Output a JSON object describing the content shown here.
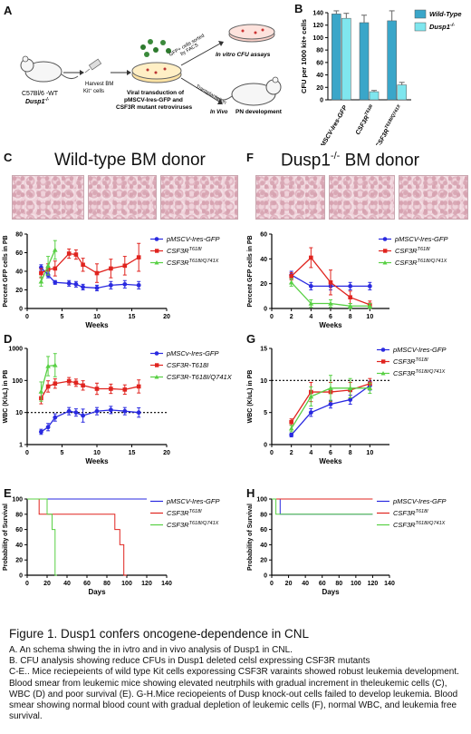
{
  "panels": {
    "A": "A",
    "B": "B",
    "C": "C",
    "D": "D",
    "E": "E",
    "F": "F",
    "G": "G",
    "H": "H"
  },
  "schema": {
    "mouse_label_1": "C57Bl/6 -WT",
    "mouse_label_2": "Dusp1",
    "mouse_label_2_sup": "-/-",
    "harvest_1": "Harvest BM",
    "harvest_2": "Kit",
    "harvest_2_sup": "+",
    "harvest_3": " cells",
    "sorted_1": "GFP+ cells sorted",
    "sorted_2": "by FACS",
    "invitro": "In vitro CFU assays",
    "transplant": "Transplantation",
    "viral_1": "Viral transduction of",
    "viral_2": "pMSCV-Ires-GFP and",
    "viral_3": "CSF3R mutant retroviruses",
    "invivo": "In Vivo",
    "pn": "PN development"
  },
  "headers": {
    "C": "Wild-type BM donor",
    "F": "Dusp1",
    "F_sup": "-/-",
    "F_rest": " BM donor"
  },
  "colors": {
    "wt_bar": "#3aa6c9",
    "ko_bar": "#7fe6ee",
    "blue": "#2a2ae0",
    "red": "#e0241f",
    "green": "#58d044"
  },
  "chart_data": [
    {
      "panel": "B",
      "type": "bar",
      "categories": [
        "pMSCV-Ires-GFP",
        "CSF3R",
        "CSF3R"
      ],
      "category_sups": [
        "",
        "T618I",
        "T618I/Q741X"
      ],
      "series": [
        {
          "name": "Wild-Type",
          "values": [
            138,
            124,
            127
          ],
          "errors": [
            5,
            12,
            16
          ]
        },
        {
          "name": "Dusp1",
          "name_sup": "-/-",
          "values": [
            131,
            13,
            24
          ],
          "errors": [
            8,
            2,
            4
          ]
        }
      ],
      "ylabel": "CFU per 1000 kit+ cells",
      "ylim": [
        0,
        140
      ],
      "yticks": [
        "0",
        "20",
        "40",
        "60",
        "80",
        "100",
        "120",
        "140"
      ]
    },
    {
      "panel": "C",
      "type": "line",
      "legend": [
        {
          "text": "pMSCV-Ires-GFP",
          "sup": ""
        },
        {
          "text": "CSF3R",
          "sup": "T618I"
        },
        {
          "text": "CSF3R",
          "sup": "T618I/Q741X"
        }
      ],
      "series": [
        {
          "x": [
            2,
            3,
            4,
            6,
            7,
            8,
            10,
            12,
            14,
            16
          ],
          "y": [
            44,
            36,
            28,
            27,
            26,
            23,
            22,
            25,
            26,
            25
          ],
          "err": [
            3,
            3,
            2,
            3,
            3,
            3,
            3,
            4,
            4,
            4
          ]
        },
        {
          "x": [
            2,
            3,
            4,
            6,
            7,
            8,
            10,
            12,
            14,
            16
          ],
          "y": [
            38,
            42,
            43,
            59,
            58,
            47,
            38,
            43,
            46,
            55
          ],
          "err": [
            5,
            6,
            8,
            5,
            5,
            7,
            10,
            10,
            10,
            15
          ]
        },
        {
          "x": [
            2,
            3,
            4
          ],
          "y": [
            29,
            46,
            63
          ],
          "err": [
            5,
            10,
            10
          ]
        }
      ],
      "xlabel": "Weeks",
      "ylabel": "Percent GFP cells in PB",
      "xlim": [
        0,
        20
      ],
      "ylim": [
        0,
        80
      ],
      "xticks": [
        "0",
        "5",
        "10",
        "15",
        "20"
      ],
      "yticks": [
        "0",
        "20",
        "40",
        "60",
        "80"
      ]
    },
    {
      "panel": "D",
      "type": "line",
      "legend": [
        {
          "text": "pMSCv-Ires-GFP",
          "sup": ""
        },
        {
          "text": "CSF3R-T618I",
          "sup": ""
        },
        {
          "text": "CSF3R-T618I/Q741X",
          "sup": ""
        }
      ],
      "series": [
        {
          "x": [
            2,
            3,
            4,
            6,
            7,
            8,
            10,
            12,
            14,
            16
          ],
          "y": [
            2.5,
            3.5,
            7,
            11,
            10,
            8,
            11,
            12,
            11,
            10
          ],
          "err_f": [
            1.2,
            1.3,
            1.3,
            1.3,
            1.3,
            1.6,
            1.3,
            1.3,
            1.3,
            1.4
          ]
        },
        {
          "x": [
            2,
            3,
            4,
            6,
            7,
            8,
            10,
            12,
            14,
            16
          ],
          "y": [
            28,
            65,
            80,
            95,
            85,
            70,
            55,
            55,
            52,
            65
          ],
          "err_f": [
            1.5,
            1.5,
            1.4,
            1.3,
            1.3,
            1.4,
            1.5,
            1.4,
            1.4,
            1.6
          ]
        },
        {
          "x": [
            2,
            3,
            4
          ],
          "y": [
            45,
            280,
            300
          ],
          "err_f": [
            2,
            2,
            2.3
          ]
        }
      ],
      "refline": 10,
      "xlabel": "Weeks",
      "ylabel": "WBC (K/uL) in PB",
      "xlim": [
        0,
        20
      ],
      "xticks": [
        "0",
        "5",
        "10",
        "15",
        "20"
      ],
      "yticks": [
        "1",
        "10",
        "100",
        "1000"
      ]
    },
    {
      "panel": "E",
      "type": "line",
      "legend": [
        {
          "text": "pMSCV-Ires-GFP",
          "sup": ""
        },
        {
          "text": "CSF3R",
          "sup": "T618I"
        },
        {
          "text": "CSF3R",
          "sup": "T618I/Q741X"
        }
      ],
      "series": [
        {
          "steps": [
            [
              0,
              100
            ],
            [
              120,
              100
            ]
          ]
        },
        {
          "steps": [
            [
              0,
              100
            ],
            [
              12,
              100
            ],
            [
              12,
              80
            ],
            [
              88,
              80
            ],
            [
              88,
              60
            ],
            [
              93,
              60
            ],
            [
              93,
              40
            ],
            [
              97,
              40
            ],
            [
              97,
              0
            ],
            [
              100,
              0
            ]
          ]
        },
        {
          "steps": [
            [
              0,
              100
            ],
            [
              20,
              100
            ],
            [
              20,
              80
            ],
            [
              25,
              80
            ],
            [
              25,
              60
            ],
            [
              28,
              60
            ],
            [
              28,
              0
            ],
            [
              30,
              0
            ]
          ]
        }
      ],
      "xlabel": "Days",
      "ylabel": "Probability of Survival",
      "xlim": [
        0,
        140
      ],
      "ylim": [
        0,
        100
      ],
      "xticks": [
        "0",
        "20",
        "40",
        "60",
        "80",
        "100",
        "120",
        "140"
      ],
      "yticks": [
        "0",
        "20",
        "40",
        "60",
        "80",
        "100"
      ]
    },
    {
      "panel": "F",
      "type": "line",
      "legend": [
        {
          "text": "pMSCV-Ires-GFP",
          "sup": ""
        },
        {
          "text": "CSF3R",
          "sup": "T618I"
        },
        {
          "text": "CSF3R",
          "sup": "T618I/Q741X"
        }
      ],
      "series": [
        {
          "x": [
            2,
            4,
            6,
            8,
            10
          ],
          "y": [
            27,
            18,
            18,
            18,
            18
          ],
          "err": [
            3,
            3,
            3,
            3,
            3
          ]
        },
        {
          "x": [
            2,
            4,
            6,
            8,
            10
          ],
          "y": [
            26,
            41,
            21,
            9,
            3
          ],
          "err": [
            3,
            8,
            10,
            5,
            3
          ]
        },
        {
          "x": [
            2,
            4,
            6,
            8,
            10
          ],
          "y": [
            21,
            4,
            4,
            2,
            2
          ],
          "err": [
            3,
            3,
            3,
            2,
            2
          ]
        }
      ],
      "xlabel": "Weeks",
      "ylabel": "Percent GFP cells in PB",
      "xlim": [
        0,
        12
      ],
      "ylim": [
        0,
        60
      ],
      "xticks": [
        "0",
        "2",
        "4",
        "6",
        "8",
        "10"
      ],
      "yticks": [
        "0",
        "20",
        "40",
        "60"
      ]
    },
    {
      "panel": "G",
      "type": "line",
      "legend": [
        {
          "text": "pMSCV-Ires-GFP",
          "sup": ""
        },
        {
          "text": "CSF3R",
          "sup": "T618I"
        },
        {
          "text": "CSF3R",
          "sup": "T618I/Q741X"
        }
      ],
      "series": [
        {
          "x": [
            2,
            4,
            6,
            8,
            10
          ],
          "y": [
            1.5,
            5,
            6.3,
            7,
            9.2
          ],
          "err": [
            0.3,
            0.6,
            0.6,
            0.7,
            0.7
          ]
        },
        {
          "x": [
            2,
            4,
            6,
            8,
            10
          ],
          "y": [
            3.5,
            8.2,
            8.2,
            8.5,
            9.5
          ],
          "err": [
            0.5,
            1.5,
            1.5,
            1.2,
            0.8
          ]
        },
        {
          "x": [
            2,
            4,
            6,
            8,
            10
          ],
          "y": [
            2.5,
            7.5,
            8.8,
            8.8,
            8.8
          ],
          "err": [
            0.5,
            1.5,
            2,
            1.5,
            0.8
          ]
        }
      ],
      "refline": 10,
      "xlabel": "Weeks",
      "ylabel": "WBC (K/uL) in PB",
      "xlim": [
        0,
        12
      ],
      "ylim": [
        0,
        15
      ],
      "xticks": [
        "0",
        "2",
        "4",
        "6",
        "8",
        "10"
      ],
      "yticks": [
        "0",
        "5",
        "10",
        "15"
      ]
    },
    {
      "panel": "H",
      "type": "line",
      "legend": [
        {
          "text": "pMSCV-Ires-GFP",
          "sup": ""
        },
        {
          "text": "CSF3R",
          "sup": "T618I"
        },
        {
          "text": "CSF3R",
          "sup": "T618I/Q741X"
        }
      ],
      "series": [
        {
          "steps": [
            [
              0,
              100
            ],
            [
              10,
              100
            ],
            [
              10,
              80
            ],
            [
              120,
              80
            ]
          ]
        },
        {
          "steps": [
            [
              0,
              100
            ],
            [
              120,
              100
            ]
          ]
        },
        {
          "steps": [
            [
              0,
              100
            ],
            [
              5,
              100
            ],
            [
              5,
              80
            ],
            [
              120,
              80
            ]
          ]
        }
      ],
      "xlabel": "Days",
      "ylabel": "Probability of Survival",
      "xlim": [
        0,
        140
      ],
      "ylim": [
        0,
        100
      ],
      "xticks": [
        "0",
        "20",
        "40",
        "60",
        "80",
        "100",
        "120",
        "140"
      ],
      "yticks": [
        "0",
        "20",
        "40",
        "60",
        "80",
        "100"
      ]
    }
  ],
  "caption": {
    "title": "Figure 1.  Dusp1 confers oncogene-dependence in CNL",
    "lines": [
      "A. An schema shwing the in ivtro and in vivo analysis of Dusp1 in CNL.",
      "B. CFU analysis showing reduce CFUs in Dusp1 deleted celsl expressing CSF3R mutants",
      "C-E.. Mice reciepeients of wild type Kit cells exporessing CSF3R varaints showed robust leukemia development. Blood smear from leukemic mice showing elevated neutrphils with gradual increment in theleukemic cells (C), WBC (D) and poor survival (E). G-H.Mice reciopeients of Dusp knock-out cells failed to develop leukemia. Blood smear showing normal blood count with gradual depletion of leukemic cells (F), normal WBC, and leukemia free survival."
    ]
  }
}
